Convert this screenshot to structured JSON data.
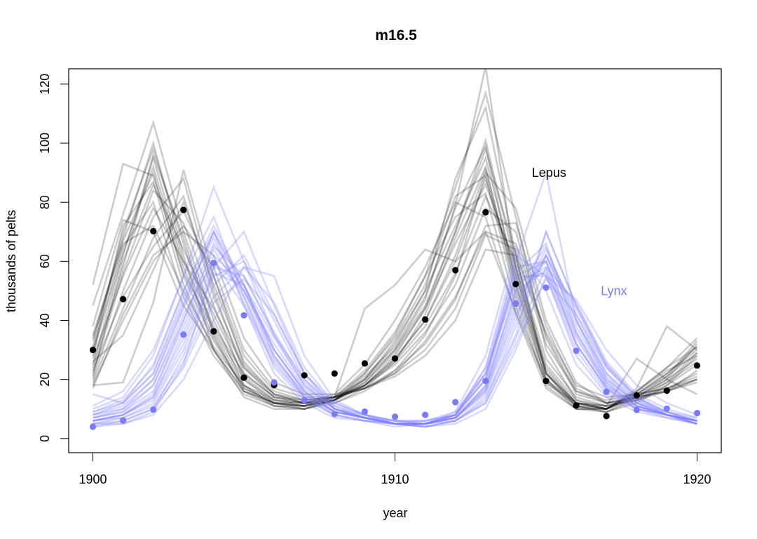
{
  "chart_data": {
    "type": "line",
    "title": "m16.5",
    "xlabel": "year",
    "ylabel": "thousands of pelts",
    "xlim": [
      1899.2,
      1920.8
    ],
    "ylim": [
      -4.8,
      125.2
    ],
    "xticks": [
      1900,
      1910,
      1920
    ],
    "yticks": [
      0,
      20,
      40,
      60,
      80,
      100,
      120
    ],
    "grid": false,
    "legend": "none",
    "colors": {
      "lepus_points": "#000000",
      "lynx_points": "#7b7bf5",
      "lepus_lines": "#000000",
      "lynx_lines": "#8080ff"
    },
    "annotations": [
      {
        "text": "Lepus",
        "x": 1915.1,
        "y": 90,
        "color": "#000000"
      },
      {
        "text": "Lynx",
        "x": 1917.25,
        "y": 50,
        "color": "#7b7bf5"
      }
    ],
    "x": [
      1900,
      1901,
      1902,
      1903,
      1904,
      1905,
      1906,
      1907,
      1908,
      1909,
      1910,
      1911,
      1912,
      1913,
      1914,
      1915,
      1916,
      1917,
      1918,
      1919,
      1920
    ],
    "observed": [
      {
        "name": "Lepus",
        "values": [
          30,
          47.2,
          70.2,
          77.4,
          36.3,
          20.6,
          18.1,
          21.4,
          22,
          25.4,
          27.1,
          40.3,
          57,
          76.6,
          52.3,
          19.5,
          11.2,
          7.6,
          14.6,
          16.2,
          24.7
        ]
      },
      {
        "name": "Lynx",
        "values": [
          4,
          6.1,
          9.8,
          35.2,
          59.4,
          41.7,
          19,
          13,
          8.3,
          9.1,
          7.4,
          8,
          12.3,
          19.5,
          45.7,
          51.1,
          29.7,
          15.8,
          9.7,
          10.1,
          8.6
        ]
      }
    ],
    "posterior_lepus": [
      [
        52,
        93,
        89,
        56,
        37,
        20,
        13,
        12,
        14,
        20,
        30,
        45,
        70,
        98,
        62,
        22,
        11,
        9,
        12,
        18,
        28
      ],
      [
        45,
        76,
        107,
        70,
        40,
        18,
        11,
        10,
        13,
        22,
        35,
        55,
        85,
        117,
        75,
        30,
        13,
        10,
        14,
        20,
        32
      ],
      [
        18,
        19,
        46,
        91,
        55,
        25,
        15,
        12,
        12,
        16,
        23,
        35,
        55,
        90,
        78,
        40,
        19,
        12,
        14,
        16,
        20
      ],
      [
        33,
        68,
        100,
        62,
        30,
        14,
        10,
        10,
        13,
        19,
        30,
        47,
        79,
        126,
        57,
        22,
        12,
        10,
        15,
        22,
        30
      ],
      [
        25,
        62,
        95,
        60,
        38,
        22,
        14,
        12,
        13,
        18,
        27,
        40,
        60,
        88,
        55,
        24,
        12,
        11,
        13,
        18,
        25
      ],
      [
        22,
        56,
        84,
        73,
        45,
        20,
        12,
        10,
        12,
        17,
        26,
        42,
        68,
        92,
        50,
        20,
        12,
        10,
        16,
        24,
        34
      ],
      [
        20,
        50,
        75,
        88,
        50,
        22,
        14,
        13,
        14,
        18,
        26,
        38,
        56,
        82,
        60,
        27,
        14,
        11,
        13,
        17,
        22
      ],
      [
        28,
        72,
        87,
        52,
        30,
        16,
        12,
        11,
        13,
        20,
        32,
        50,
        72,
        95,
        55,
        20,
        10,
        9,
        13,
        19,
        29
      ],
      [
        19,
        44,
        68,
        82,
        48,
        24,
        15,
        13,
        14,
        17,
        22,
        33,
        48,
        70,
        66,
        35,
        16,
        12,
        14,
        16,
        19
      ],
      [
        35,
        67,
        90,
        55,
        33,
        17,
        12,
        11,
        14,
        22,
        34,
        52,
        82,
        89,
        48,
        18,
        10,
        10,
        15,
        22,
        31
      ],
      [
        18,
        40,
        60,
        72,
        58,
        30,
        17,
        14,
        14,
        17,
        22,
        30,
        44,
        69,
        64,
        32,
        16,
        13,
        15,
        17,
        21
      ],
      [
        30,
        65,
        80,
        48,
        28,
        15,
        11,
        11,
        14,
        23,
        36,
        55,
        75,
        83,
        45,
        19,
        11,
        10,
        16,
        23,
        28
      ],
      [
        24,
        58,
        96,
        68,
        36,
        18,
        12,
        11,
        13,
        19,
        29,
        44,
        70,
        101,
        58,
        22,
        12,
        10,
        14,
        20,
        27
      ],
      [
        26,
        35,
        57,
        80,
        52,
        26,
        15,
        12,
        14,
        18,
        25,
        36,
        52,
        78,
        70,
        34,
        15,
        12,
        13,
        16,
        23
      ],
      [
        21,
        60,
        86,
        64,
        42,
        21,
        13,
        11,
        13,
        18,
        27,
        40,
        62,
        91,
        52,
        23,
        12,
        11,
        27,
        20,
        15
      ],
      [
        38,
        74,
        70,
        45,
        30,
        16,
        12,
        12,
        15,
        25,
        40,
        58,
        80,
        75,
        42,
        17,
        10,
        10,
        17,
        38,
        30
      ],
      [
        23,
        48,
        65,
        77,
        55,
        28,
        16,
        13,
        14,
        17,
        23,
        32,
        47,
        72,
        73,
        38,
        17,
        12,
        14,
        16,
        20
      ],
      [
        29,
        63,
        92,
        58,
        34,
        17,
        12,
        11,
        13,
        21,
        31,
        48,
        78,
        99,
        52,
        20,
        11,
        10,
        15,
        21,
        29
      ],
      [
        17,
        42,
        62,
        70,
        62,
        34,
        19,
        15,
        15,
        17,
        21,
        28,
        40,
        64,
        62,
        36,
        18,
        14,
        15,
        17,
        20
      ],
      [
        31,
        70,
        98,
        66,
        35,
        16,
        11,
        10,
        13,
        20,
        33,
        50,
        88,
        112,
        62,
        22,
        11,
        9,
        14,
        21,
        33
      ],
      [
        27,
        55,
        78,
        60,
        44,
        24,
        14,
        12,
        13,
        18,
        28,
        44,
        66,
        86,
        58,
        25,
        13,
        11,
        14,
        19,
        26
      ],
      [
        34,
        66,
        72,
        50,
        31,
        18,
        13,
        12,
        14,
        44,
        52,
        64,
        60,
        70,
        43,
        19,
        12,
        10,
        16,
        24,
        31
      ]
    ],
    "posterior_lynx": [
      [
        11,
        16,
        30,
        55,
        85,
        60,
        35,
        18,
        10,
        8,
        6,
        6,
        8,
        20,
        60,
        90,
        40,
        20,
        12,
        9,
        7
      ],
      [
        5,
        5,
        9,
        25,
        58,
        70,
        45,
        22,
        10,
        7,
        5,
        4,
        6,
        14,
        35,
        70,
        45,
        25,
        14,
        8,
        5
      ],
      [
        8,
        10,
        20,
        45,
        70,
        50,
        30,
        16,
        9,
        7,
        5,
        6,
        9,
        22,
        55,
        60,
        35,
        18,
        11,
        8,
        6
      ],
      [
        6,
        8,
        15,
        40,
        65,
        55,
        35,
        20,
        11,
        8,
        6,
        5,
        7,
        18,
        50,
        65,
        40,
        22,
        13,
        9,
        6
      ],
      [
        7,
        9,
        18,
        42,
        60,
        45,
        25,
        14,
        8,
        6,
        5,
        5,
        8,
        20,
        55,
        55,
        30,
        16,
        10,
        7,
        5
      ],
      [
        9,
        12,
        25,
        50,
        70,
        45,
        22,
        12,
        7,
        6,
        4,
        5,
        9,
        28,
        65,
        50,
        25,
        14,
        9,
        7,
        5
      ],
      [
        4,
        5,
        8,
        20,
        40,
        58,
        55,
        28,
        13,
        8,
        5,
        4,
        5,
        10,
        30,
        55,
        47,
        30,
        18,
        12,
        8
      ],
      [
        6,
        7,
        12,
        30,
        55,
        60,
        40,
        20,
        10,
        7,
        5,
        5,
        7,
        15,
        40,
        70,
        45,
        25,
        14,
        9,
        6
      ],
      [
        10,
        14,
        28,
        55,
        75,
        48,
        24,
        13,
        8,
        6,
        5,
        5,
        8,
        24,
        62,
        55,
        28,
        15,
        10,
        8,
        6
      ],
      [
        5,
        6,
        10,
        28,
        52,
        62,
        42,
        22,
        11,
        7,
        5,
        4,
        6,
        13,
        38,
        62,
        44,
        24,
        13,
        8,
        5
      ],
      [
        7,
        9,
        16,
        38,
        62,
        52,
        30,
        16,
        9,
        7,
        5,
        5,
        7,
        17,
        48,
        60,
        36,
        19,
        11,
        8,
        6
      ],
      [
        15,
        12,
        22,
        48,
        68,
        46,
        26,
        14,
        9,
        7,
        6,
        6,
        8,
        22,
        52,
        58,
        32,
        17,
        10,
        8,
        6
      ],
      [
        6,
        8,
        14,
        34,
        58,
        55,
        36,
        19,
        10,
        7,
        5,
        5,
        7,
        16,
        44,
        64,
        42,
        22,
        12,
        8,
        5
      ],
      [
        8,
        11,
        20,
        44,
        66,
        50,
        28,
        15,
        9,
        7,
        5,
        5,
        8,
        20,
        54,
        56,
        32,
        17,
        11,
        8,
        6
      ],
      [
        5,
        7,
        11,
        26,
        48,
        58,
        46,
        24,
        12,
        8,
        5,
        4,
        6,
        12,
        34,
        58,
        46,
        26,
        15,
        10,
        7
      ],
      [
        9,
        13,
        24,
        50,
        72,
        52,
        28,
        14,
        8,
        6,
        5,
        5,
        8,
        24,
        58,
        60,
        32,
        17,
        10,
        8,
        6
      ],
      [
        6,
        8,
        13,
        32,
        56,
        52,
        34,
        18,
        10,
        7,
        5,
        5,
        7,
        16,
        42,
        62,
        40,
        21,
        12,
        8,
        5
      ],
      [
        7,
        10,
        18,
        40,
        64,
        48,
        27,
        15,
        9,
        7,
        5,
        5,
        7,
        18,
        50,
        57,
        34,
        18,
        11,
        8,
        6
      ],
      [
        4,
        6,
        10,
        24,
        46,
        54,
        42,
        22,
        12,
        8,
        6,
        5,
        6,
        12,
        32,
        54,
        42,
        24,
        14,
        9,
        6
      ],
      [
        8,
        12,
        22,
        46,
        70,
        52,
        30,
        16,
        9,
        7,
        5,
        5,
        8,
        22,
        56,
        66,
        36,
        19,
        11,
        8,
        6
      ],
      [
        6,
        8,
        14,
        36,
        60,
        50,
        32,
        17,
        10,
        7,
        5,
        5,
        7,
        17,
        46,
        62,
        38,
        20,
        12,
        8,
        5
      ]
    ]
  }
}
